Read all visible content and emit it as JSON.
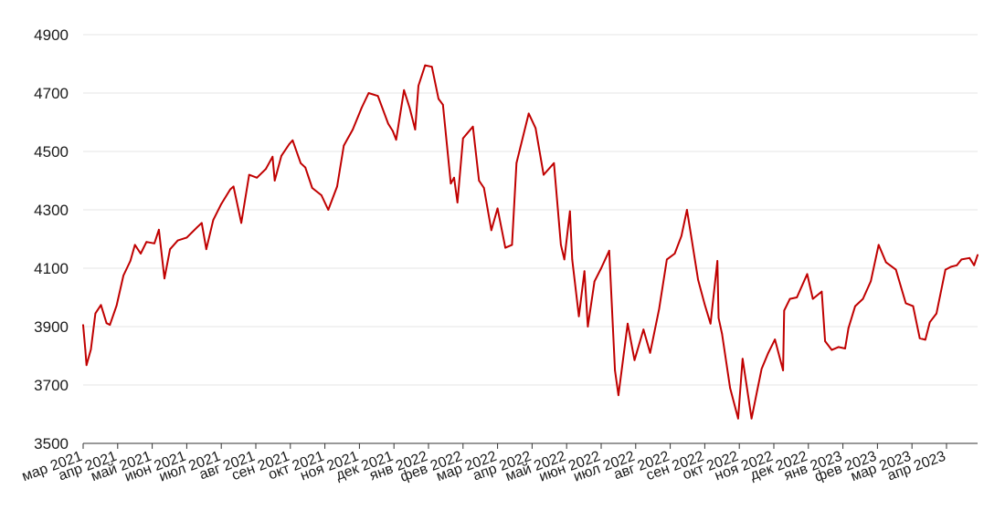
{
  "chart_data": {
    "type": "line",
    "title": "",
    "xlabel": "",
    "ylabel": "",
    "ylim": [
      3500,
      4900
    ],
    "yticks": [
      3500,
      3700,
      3900,
      4100,
      4300,
      4500,
      4700,
      4900
    ],
    "grid": true,
    "legend": "none",
    "x_tick_labels": [
      "мар 2021",
      "апр 2021",
      "май 2021",
      "июн 2021",
      "июл 2021",
      "авг 2021",
      "сен 2021",
      "окт 2021",
      "ноя 2021",
      "дек 2021",
      "янв 2022",
      "фев 2022",
      "мар 2022",
      "апр 2022",
      "май 2022",
      "июн 2022",
      "июл 2022",
      "авг 2022",
      "сен 2022",
      "окт 2022",
      "ноя 2022",
      "дек 2022",
      "янв 2023",
      "фев 2023",
      "мар 2023",
      "апр 2023"
    ],
    "series": [
      {
        "color": "#c00000",
        "x": [
          "2021-03-01",
          "2021-03-03",
          "2021-03-04",
          "2021-03-08",
          "2021-03-12",
          "2021-03-17",
          "2021-03-22",
          "2021-03-25",
          "2021-03-31",
          "2021-04-06",
          "2021-04-12",
          "2021-04-16",
          "2021-04-21",
          "2021-04-26",
          "2021-05-03",
          "2021-05-07",
          "2021-05-12",
          "2021-05-17",
          "2021-05-24",
          "2021-06-01",
          "2021-06-10",
          "2021-06-14",
          "2021-06-18",
          "2021-06-24",
          "2021-07-01",
          "2021-07-09",
          "2021-07-12",
          "2021-07-19",
          "2021-07-26",
          "2021-08-02",
          "2021-08-10",
          "2021-08-16",
          "2021-08-18",
          "2021-08-24",
          "2021-08-31",
          "2021-09-03",
          "2021-09-10",
          "2021-09-14",
          "2021-09-20",
          "2021-09-28",
          "2021-10-04",
          "2021-10-12",
          "2021-10-18",
          "2021-10-26",
          "2021-11-03",
          "2021-11-09",
          "2021-11-17",
          "2021-11-26",
          "2021-11-30",
          "2021-12-03",
          "2021-12-10",
          "2021-12-15",
          "2021-12-20",
          "2021-12-23",
          "2021-12-29",
          "2022-01-04",
          "2022-01-10",
          "2022-01-14",
          "2022-01-21",
          "2022-01-24",
          "2022-01-27",
          "2022-02-01",
          "2022-02-09",
          "2022-02-14",
          "2022-02-18",
          "2022-02-24",
          "2022-03-01",
          "2022-03-08",
          "2022-03-14",
          "2022-03-18",
          "2022-03-29",
          "2022-04-04",
          "2022-04-11",
          "2022-04-20",
          "2022-04-26",
          "2022-04-29",
          "2022-05-04",
          "2022-05-06",
          "2022-05-12",
          "2022-05-17",
          "2022-05-20",
          "2022-05-26",
          "2022-06-01",
          "2022-06-08",
          "2022-06-13",
          "2022-06-16",
          "2022-06-24",
          "2022-06-30",
          "2022-07-08",
          "2022-07-14",
          "2022-07-22",
          "2022-07-29",
          "2022-08-05",
          "2022-08-11",
          "2022-08-16",
          "2022-08-19",
          "2022-08-26",
          "2022-09-01",
          "2022-09-06",
          "2022-09-12",
          "2022-09-13",
          "2022-09-16",
          "2022-09-23",
          "2022-09-30",
          "2022-10-04",
          "2022-10-12",
          "2022-10-17",
          "2022-10-21",
          "2022-10-27",
          "2022-11-02",
          "2022-11-09",
          "2022-11-10",
          "2022-11-15",
          "2022-11-21",
          "2022-11-30",
          "2022-12-05",
          "2022-12-13",
          "2022-12-16",
          "2022-12-22",
          "2022-12-28",
          "2023-01-03",
          "2023-01-06",
          "2023-01-12",
          "2023-01-19",
          "2023-01-26",
          "2023-02-02",
          "2023-02-08",
          "2023-02-16",
          "2023-02-24",
          "2023-03-02",
          "2023-03-08",
          "2023-03-13",
          "2023-03-17",
          "2023-03-23",
          "2023-03-31",
          "2023-04-05",
          "2023-04-10",
          "2023-04-14",
          "2023-04-21",
          "2023-04-25",
          "2023-04-28"
        ],
        "y": [
          3905,
          3820,
          3768,
          3822,
          3945,
          3974,
          3912,
          3906,
          3972,
          4075,
          4125,
          4180,
          4150,
          4190,
          4185,
          4232,
          4065,
          4165,
          4195,
          4205,
          4240,
          4255,
          4165,
          4265,
          4320,
          4370,
          4380,
          4255,
          4420,
          4410,
          4440,
          4482,
          4400,
          4485,
          4525,
          4538,
          4460,
          4445,
          4375,
          4350,
          4300,
          4380,
          4520,
          4575,
          4650,
          4700,
          4690,
          4595,
          4570,
          4540,
          4710,
          4650,
          4575,
          4725,
          4795,
          4790,
          4680,
          4660,
          4390,
          4410,
          4325,
          4545,
          4585,
          4400,
          4375,
          4230,
          4305,
          4170,
          4180,
          4460,
          4630,
          4580,
          4420,
          4460,
          4180,
          4130,
          4295,
          4130,
          3935,
          4090,
          3900,
          4055,
          4100,
          4160,
          3750,
          3665,
          3910,
          3785,
          3890,
          3810,
          3960,
          4130,
          4150,
          4210,
          4300,
          4230,
          4060,
          3975,
          3910,
          4125,
          3930,
          3875,
          3690,
          3585,
          3790,
          3585,
          3680,
          3755,
          3810,
          3856,
          3750,
          3955,
          3995,
          4000,
          4080,
          3995,
          4020,
          3850,
          3820,
          3830,
          3825,
          3895,
          3970,
          3995,
          4055,
          4180,
          4120,
          4095,
          3980,
          3970,
          3860,
          3855,
          3915,
          3945,
          4095,
          4105,
          4110,
          4130,
          4135,
          4110,
          4145
        ]
      }
    ]
  }
}
